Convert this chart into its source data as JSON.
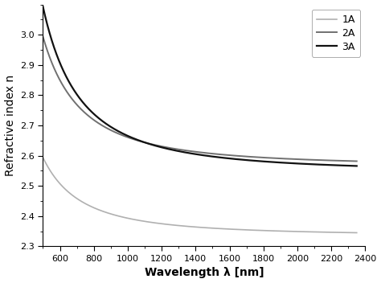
{
  "xlabel": "Wavelength λ [nm]",
  "ylabel": "Refractive index n",
  "xlim": [
    500,
    2400
  ],
  "ylim": [
    2.3,
    3.1
  ],
  "xticks": [
    600,
    800,
    1000,
    1200,
    1400,
    1600,
    1800,
    2000,
    2200,
    2400
  ],
  "yticks": [
    2.3,
    2.4,
    2.5,
    2.6,
    2.7,
    2.8,
    2.9,
    3.0
  ],
  "series": [
    {
      "label": "1A",
      "color": "#b0b0b0",
      "linewidth": 1.2,
      "A": 2.335,
      "B": 56000,
      "C": 2200000000.0
    },
    {
      "label": "2A",
      "color": "#707070",
      "linewidth": 1.4,
      "A": 2.565,
      "B": 92000,
      "C": 3800000000.0
    },
    {
      "label": "3A",
      "color": "#111111",
      "linewidth": 1.6,
      "A": 2.545,
      "B": 115000,
      "C": 5500000000.0
    }
  ],
  "background_color": "#ffffff",
  "legend_loc": "upper right",
  "legend_fontsize": 9,
  "tick_labelsize": 8,
  "xlabel_fontsize": 10,
  "ylabel_fontsize": 10
}
